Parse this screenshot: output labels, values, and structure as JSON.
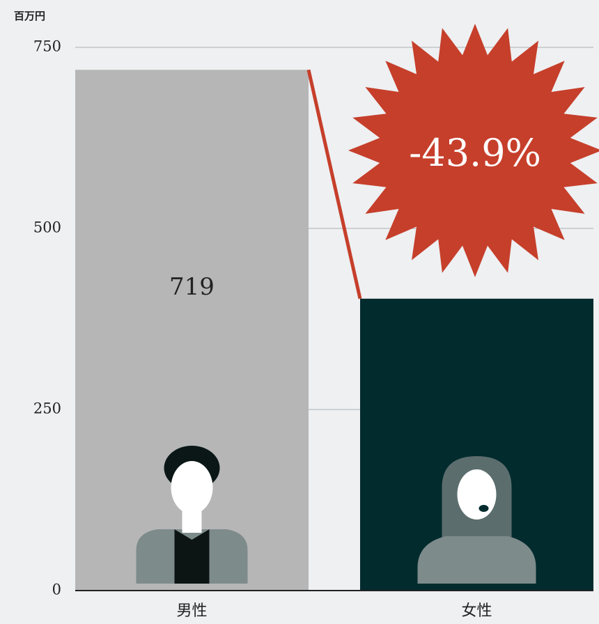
{
  "chart_data": {
    "type": "bar",
    "unit_label": "百万円",
    "categories": [
      "男性",
      "女性"
    ],
    "values": [
      719,
      403
    ],
    "value_labels": [
      "719",
      null
    ],
    "colors": [
      "#b6b6b6",
      "#022b2e"
    ],
    "annotation": "-43.9%",
    "annotation_color": "#c63f2b",
    "ylim": [
      0,
      750
    ],
    "yticks": [
      0,
      250,
      500,
      750
    ],
    "grid": true
  }
}
